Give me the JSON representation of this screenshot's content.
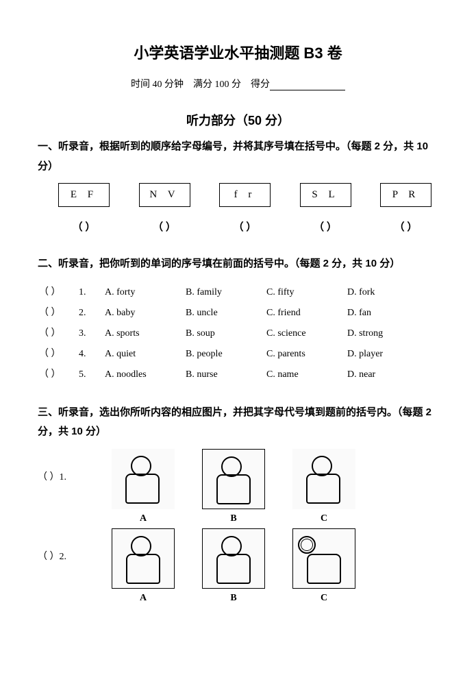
{
  "title": "小学英语学业水平抽测题  B3 卷",
  "meta": {
    "time_label": "时间 40 分钟",
    "full_label": "满分 100 分",
    "score_label": "得分"
  },
  "listening_header": "听力部分（50 分）",
  "q1": {
    "instr": "一、听录音，根据听到的顺序给字母编号，并将其序号填在括号中。（每题 2 分，共 10 分）",
    "boxes": [
      "E   F",
      "N   V",
      "f   r",
      "S   L",
      "P   R"
    ],
    "paren": "（        ）"
  },
  "q2": {
    "instr": "二、听录音，把你听到的单词的序号填在前面的括号中。（每题 2 分，共 10 分）",
    "paren": "（          ）",
    "rows": [
      {
        "n": "1.",
        "A": "A.   forty",
        "B": "B.   family",
        "C": "C.   fifty",
        "D": "D.   fork"
      },
      {
        "n": "2.",
        "A": "A.   baby",
        "B": "B.   uncle",
        "C": "C.   friend",
        "D": "D.   fan"
      },
      {
        "n": "3.",
        "A": "A.   sports",
        "B": "B.   soup",
        "C": "C.   science",
        "D": "D.   strong"
      },
      {
        "n": "4.",
        "A": "A.   quiet",
        "B": "B.   people",
        "C": "C.   parents",
        "D": "D.   player"
      },
      {
        "n": "5.",
        "A": "A.   noodles",
        "B": "B.   nurse",
        "C": "C.   name",
        "D": "D.   near"
      }
    ]
  },
  "q3": {
    "instr": "三、听录音，选出你所听内容的相应图片，并把其字母代号填到题前的括号内。（每题 2 分，共 10 分）",
    "items": [
      {
        "prefix": "（          ）1.",
        "imgs": [
          {
            "label": "A",
            "bordered": false
          },
          {
            "label": "B",
            "bordered": true
          },
          {
            "label": "C",
            "bordered": false
          }
        ]
      },
      {
        "prefix": "（          ）2.",
        "imgs": [
          {
            "label": "A",
            "bordered": true
          },
          {
            "label": "B",
            "bordered": true
          },
          {
            "label": "C",
            "bordered": true,
            "ball": true
          }
        ]
      }
    ]
  }
}
